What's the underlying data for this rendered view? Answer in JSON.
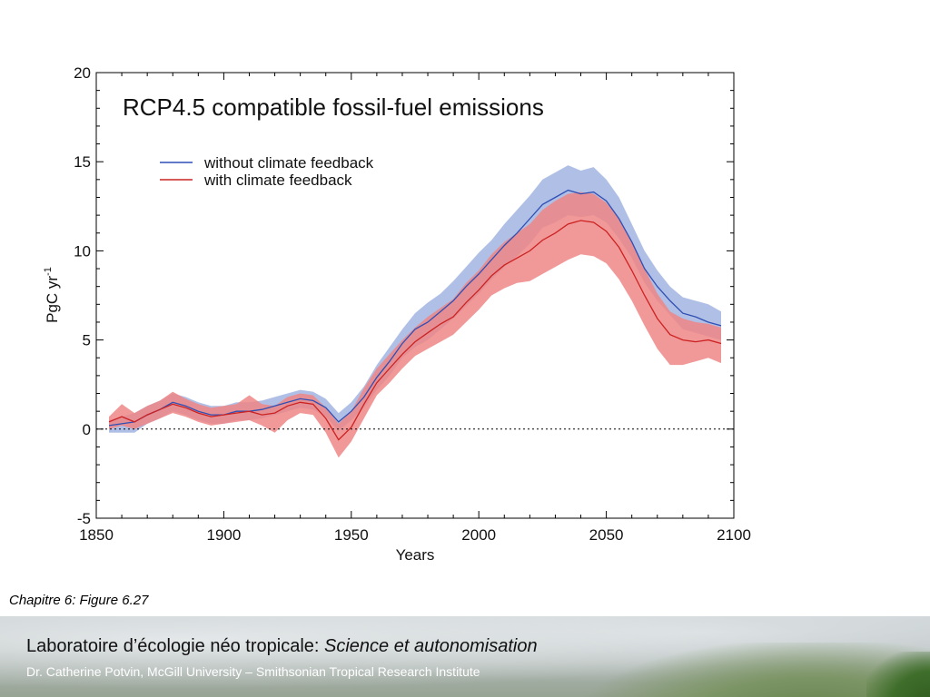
{
  "caption": "Chapitre 6: Figure 6.27",
  "footer": {
    "title_main": "Laboratoire d’écologie néo tropicale: ",
    "title_italic": "Science et autonomisation",
    "subtitle": "Dr. Catherine Potvin, McGill University – Smithsonian Tropical Research Institute"
  },
  "chart_data": {
    "type": "line",
    "title": "RCP4.5 compatible fossil-fuel emissions",
    "xlabel": "Years",
    "ylabel": "PgC yr",
    "ylabel_superscript": "-1",
    "xlim": [
      1850,
      2100
    ],
    "ylim": [
      -5,
      20
    ],
    "xticks": [
      1850,
      1900,
      1950,
      2000,
      2050,
      2100
    ],
    "yticks": [
      -5,
      0,
      5,
      10,
      15,
      20
    ],
    "grid": false,
    "legend_position": "upper-left",
    "reference_line": 0,
    "x": [
      1855,
      1860,
      1865,
      1870,
      1875,
      1880,
      1885,
      1890,
      1895,
      1900,
      1905,
      1910,
      1915,
      1920,
      1925,
      1930,
      1935,
      1940,
      1945,
      1950,
      1955,
      1960,
      1965,
      1970,
      1975,
      1980,
      1985,
      1990,
      1995,
      2000,
      2005,
      2010,
      2015,
      2020,
      2025,
      2030,
      2035,
      2040,
      2045,
      2050,
      2055,
      2060,
      2065,
      2070,
      2075,
      2080,
      2085,
      2090,
      2095
    ],
    "series": [
      {
        "name": "without climate feedback",
        "color": "#2f4fb5",
        "band_color": "#a7b8e2",
        "values": [
          0.2,
          0.3,
          0.4,
          0.8,
          1.1,
          1.5,
          1.3,
          1.0,
          0.8,
          0.8,
          1.0,
          1.0,
          1.1,
          1.3,
          1.5,
          1.7,
          1.6,
          1.2,
          0.4,
          1.0,
          1.8,
          2.9,
          3.8,
          4.8,
          5.6,
          6.0,
          6.6,
          7.2,
          8.0,
          8.7,
          9.5,
          10.3,
          11.0,
          11.8,
          12.6,
          13.0,
          13.4,
          13.2,
          13.3,
          12.8,
          11.8,
          10.5,
          9.0,
          8.0,
          7.2,
          6.5,
          6.3,
          6.0,
          5.8
        ],
        "lower": [
          -0.2,
          -0.2,
          -0.2,
          0.3,
          0.6,
          1.0,
          0.8,
          0.5,
          0.3,
          0.3,
          0.5,
          0.5,
          0.6,
          0.8,
          1.0,
          1.2,
          1.1,
          0.7,
          -0.1,
          0.5,
          1.2,
          2.2,
          3.0,
          4.0,
          4.6,
          5.0,
          5.6,
          6.2,
          6.9,
          7.6,
          8.4,
          9.1,
          9.7,
          10.4,
          11.3,
          11.6,
          12.0,
          11.9,
          12.0,
          11.6,
          10.7,
          9.6,
          8.2,
          7.2,
          6.4,
          5.6,
          5.4,
          5.2,
          5.0
        ],
        "upper": [
          0.5,
          0.7,
          0.9,
          1.3,
          1.6,
          2.0,
          1.8,
          1.5,
          1.3,
          1.3,
          1.5,
          1.5,
          1.6,
          1.8,
          2.0,
          2.2,
          2.1,
          1.7,
          0.9,
          1.5,
          2.4,
          3.6,
          4.6,
          5.6,
          6.5,
          7.1,
          7.6,
          8.3,
          9.1,
          9.9,
          10.6,
          11.5,
          12.3,
          13.1,
          14.0,
          14.4,
          14.8,
          14.5,
          14.7,
          14.0,
          13.0,
          11.5,
          10.0,
          8.9,
          8.0,
          7.4,
          7.2,
          7.0,
          6.6
        ]
      },
      {
        "name": "with climate feedback",
        "color": "#cc2222",
        "band_color": "#ee8686",
        "values": [
          0.4,
          0.7,
          0.4,
          0.8,
          1.1,
          1.4,
          1.2,
          0.9,
          0.7,
          0.8,
          0.9,
          1.0,
          0.8,
          0.9,
          1.3,
          1.5,
          1.4,
          0.6,
          -0.6,
          0.1,
          1.4,
          2.6,
          3.4,
          4.2,
          4.9,
          5.4,
          5.9,
          6.3,
          7.1,
          7.8,
          8.6,
          9.2,
          9.6,
          10.0,
          10.6,
          11.0,
          11.5,
          11.7,
          11.6,
          11.1,
          10.2,
          8.9,
          7.5,
          6.2,
          5.3,
          5.0,
          4.9,
          5.0,
          4.8
        ],
        "lower": [
          0.0,
          0.2,
          0.0,
          0.3,
          0.6,
          0.9,
          0.7,
          0.4,
          0.2,
          0.3,
          0.4,
          0.5,
          0.2,
          -0.2,
          0.5,
          0.9,
          0.8,
          -0.2,
          -1.6,
          -0.7,
          0.6,
          1.9,
          2.6,
          3.4,
          4.1,
          4.5,
          4.9,
          5.3,
          6.0,
          6.7,
          7.5,
          7.9,
          8.2,
          8.3,
          8.7,
          9.1,
          9.5,
          9.8,
          9.7,
          9.3,
          8.4,
          7.2,
          5.8,
          4.5,
          3.6,
          3.6,
          3.8,
          4.0,
          3.7
        ],
        "upper": [
          0.7,
          1.4,
          0.9,
          1.3,
          1.6,
          2.1,
          1.7,
          1.4,
          1.2,
          1.3,
          1.4,
          1.9,
          1.4,
          1.3,
          1.8,
          2.0,
          1.9,
          1.2,
          0.3,
          1.0,
          2.3,
          3.4,
          4.2,
          5.0,
          5.7,
          6.3,
          6.8,
          7.3,
          8.2,
          8.9,
          9.8,
          10.5,
          11.0,
          11.5,
          12.3,
          12.8,
          13.2,
          13.3,
          13.2,
          12.7,
          11.8,
          10.5,
          9.0,
          7.6,
          6.6,
          6.2,
          6.0,
          5.9,
          5.7
        ]
      }
    ]
  }
}
